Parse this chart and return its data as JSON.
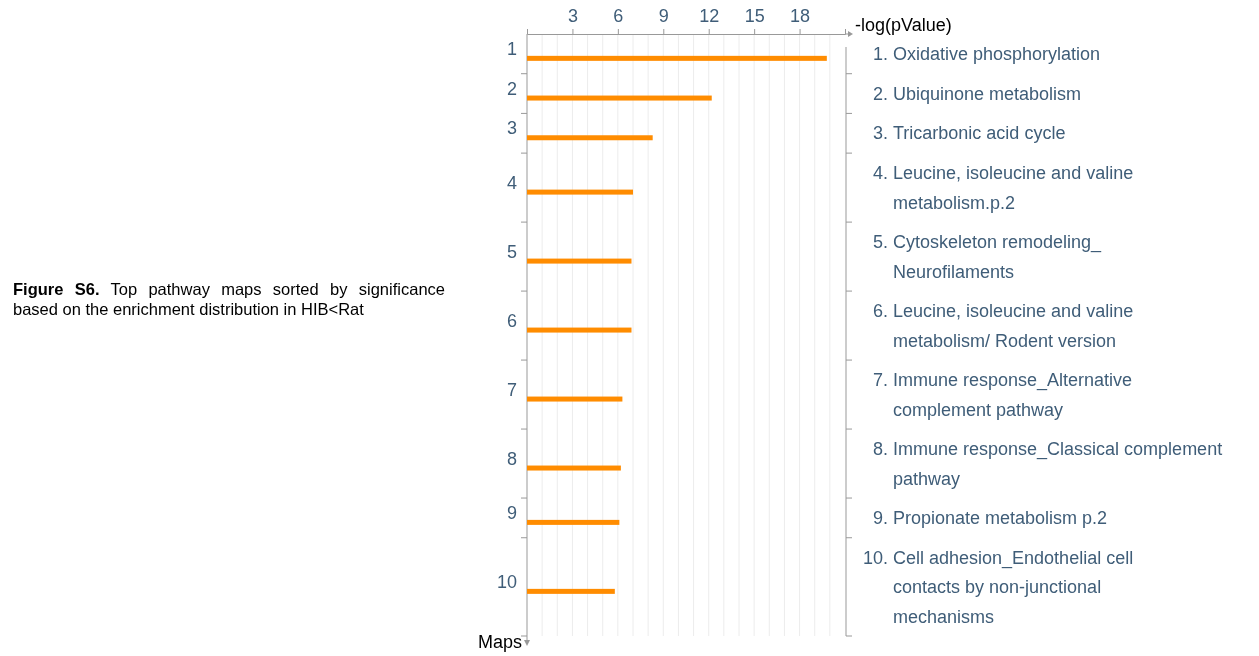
{
  "chart_data": {
    "type": "bar",
    "orientation": "horizontal",
    "title": "Figure S6.",
    "subtitle": "Top pathway maps sorted by significance based on the enrichment distribution in HIB<Rat",
    "xlabel": "-log(pValue)",
    "ylabel": "Maps",
    "categories": [
      "1",
      "2",
      "3",
      "4",
      "5",
      "6",
      "7",
      "8",
      "9",
      "10"
    ],
    "values": [
      19.8,
      12.2,
      8.3,
      7.0,
      6.9,
      6.9,
      6.3,
      6.2,
      6.1,
      5.8
    ],
    "color": "#ff8c00",
    "xlim": [
      0,
      21
    ],
    "xticks": [
      {
        "value": 1,
        "label": null
      },
      {
        "value": 2,
        "label": null
      },
      3,
      {
        "value": 4,
        "label": null
      },
      {
        "value": 5,
        "label": null
      },
      6,
      {
        "value": 7,
        "label": null
      },
      {
        "value": 8,
        "label": null
      },
      9,
      {
        "value": 10,
        "label": null
      },
      {
        "value": 11,
        "label": null
      },
      12,
      {
        "value": 13,
        "label": null
      },
      {
        "value": 14,
        "label": null
      },
      15,
      {
        "value": 16,
        "label": null
      },
      {
        "value": 17,
        "label": null
      },
      18,
      {
        "value": 19,
        "label": null
      },
      {
        "value": 20,
        "label": null
      }
    ],
    "grid": "x",
    "annotations": [
      "1. Oxidative phosphorylation",
      "2. Ubiquinone metabolism",
      "3. Tricarbonic acid cycle",
      "4. Leucine, isoleucine and valine\nmetabolism.p.2",
      "5. Cytoskeleton remodeling_\nNeurofilaments",
      "6. Leucine, isoleucine and valine\nmetabolism/ Rodent version",
      "7. Immune response_Alternative\ncomplement pathway",
      "8. Immune response_Classical complement\npathway",
      "9. Propionate metabolism p.2",
      "10. Cell adhesion_Endothelial cell\ncontacts by non-junctional\nmechanisms"
    ]
  }
}
